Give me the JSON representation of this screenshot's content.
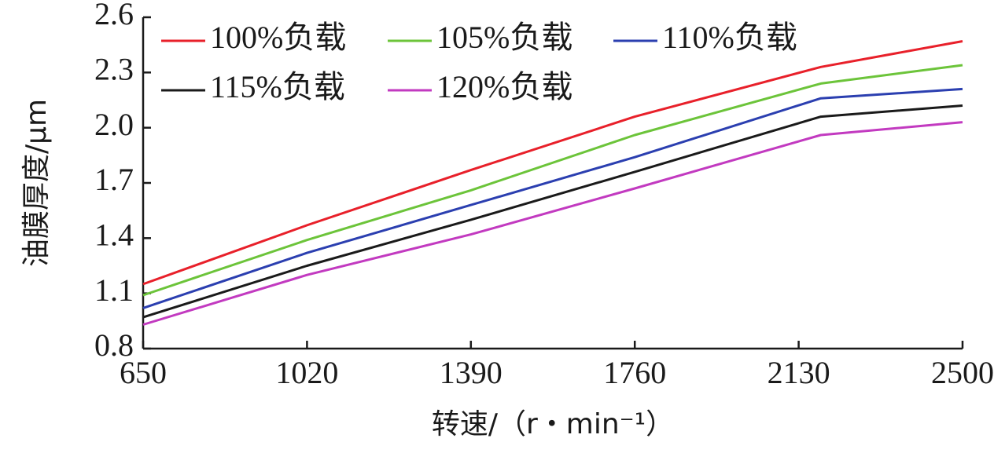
{
  "chart_data": {
    "type": "line",
    "title": "",
    "xlabel": "转速/（r・min⁻¹）",
    "ylabel": "油膜厚度/μm",
    "x_ticks": [
      650,
      1020,
      1390,
      1760,
      2130,
      2500
    ],
    "x_tick_labels": [
      "650",
      "1020",
      "1390",
      "1760",
      "2130",
      "2500"
    ],
    "y_ticks": [
      0.8,
      1.1,
      1.4,
      1.7,
      2.0,
      2.3,
      2.6
    ],
    "y_tick_labels": [
      "0.8",
      "1.1",
      "1.4",
      "1.7",
      "2.0",
      "2.3",
      "2.6"
    ],
    "xlim": [
      650,
      2500
    ],
    "ylim": [
      0.8,
      2.6
    ],
    "grid": false,
    "legend_position": "top-left",
    "x": [
      650,
      1020,
      1390,
      1760,
      2180,
      2500
    ],
    "series": [
      {
        "name": "100%负载",
        "color": "#e8202a",
        "values": [
          1.15,
          1.47,
          1.77,
          2.06,
          2.33,
          2.47
        ]
      },
      {
        "name": "105%负载",
        "color": "#6cc43a",
        "values": [
          1.09,
          1.39,
          1.66,
          1.96,
          2.24,
          2.34
        ]
      },
      {
        "name": "110%负载",
        "color": "#2b3fb0",
        "values": [
          1.02,
          1.32,
          1.58,
          1.84,
          2.16,
          2.21
        ]
      },
      {
        "name": "115%负载",
        "color": "#1a1a1a",
        "values": [
          0.97,
          1.25,
          1.5,
          1.76,
          2.06,
          2.12
        ]
      },
      {
        "name": "120%负载",
        "color": "#c23ac0",
        "values": [
          0.93,
          1.2,
          1.42,
          1.67,
          1.96,
          2.03
        ]
      }
    ]
  }
}
